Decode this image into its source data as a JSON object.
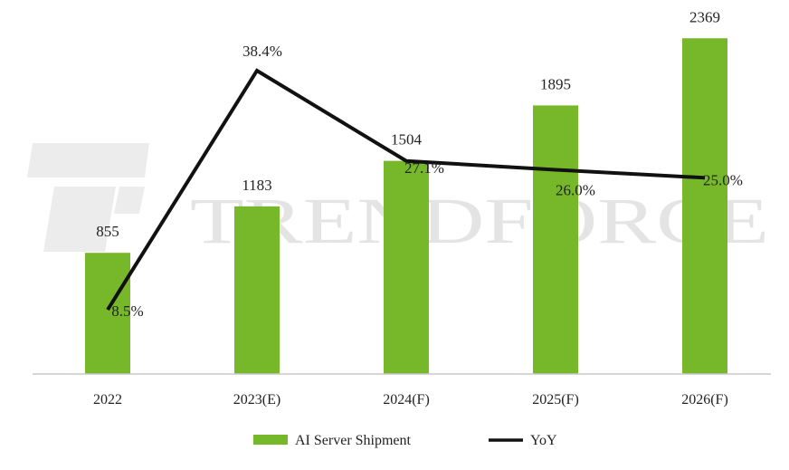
{
  "watermark": {
    "text": "TRENDFORCE"
  },
  "colors": {
    "bar": "#77b82a",
    "line": "#111111",
    "axis": "#c8c8c8",
    "watermark": "#e6e6e6"
  },
  "chart_data": {
    "type": "bar",
    "categories": [
      "2022",
      "2023(E)",
      "2024(F)",
      "2025(F)",
      "2026(F)"
    ],
    "series": [
      {
        "name": "AI Server Shipment",
        "type": "bar",
        "values": [
          855,
          1183,
          1504,
          1895,
          2369
        ],
        "labels": [
          "855",
          "1183",
          "1504",
          "1895",
          "2369"
        ]
      },
      {
        "name": "YoY",
        "type": "line",
        "values": [
          8.5,
          38.4,
          27.1,
          26.0,
          25.0
        ],
        "labels": [
          "8.5%",
          "38.4%",
          "27.1%",
          "26.0%",
          "25.0%"
        ]
      }
    ],
    "legend_position": "bottom",
    "grid": false
  }
}
